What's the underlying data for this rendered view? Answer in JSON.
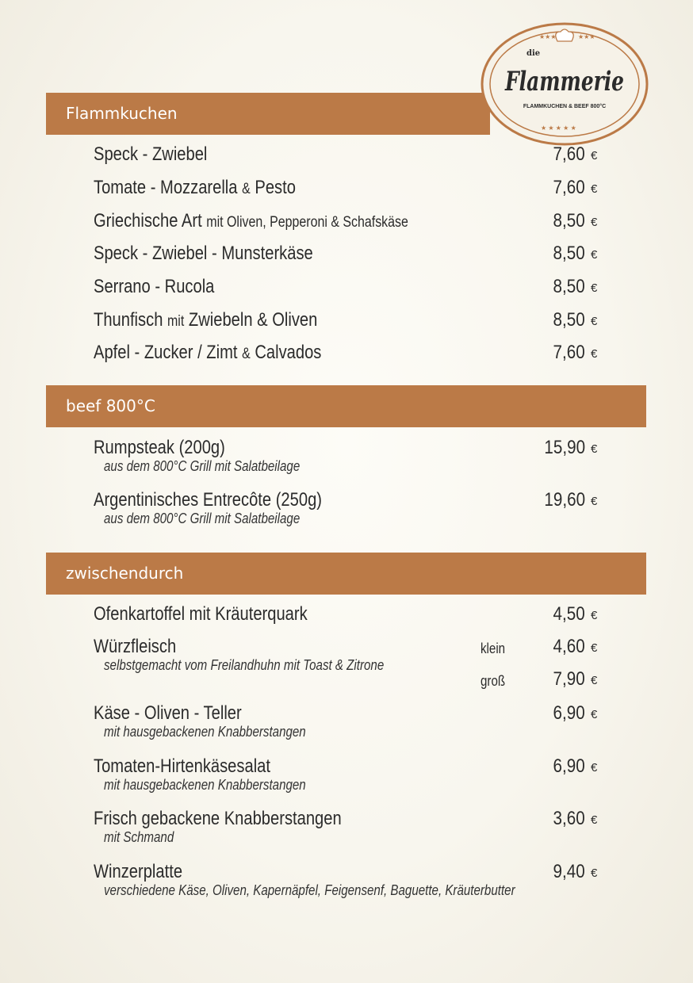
{
  "logo": {
    "small": "die",
    "main": "Flammerie",
    "tagline": "FLAMMKUCHEN & BEEF 800°C"
  },
  "colors": {
    "accent": "#bb7a47",
    "background": "#f8f6ee",
    "text": "#2b2b2b"
  },
  "currency": "€",
  "sections": [
    {
      "title": "Flammkuchen",
      "items": [
        {
          "name": [
            {
              "t": "Speck - Zwiebel"
            }
          ],
          "prices": [
            {
              "price": "7,60"
            }
          ]
        },
        {
          "name": [
            {
              "t": "Tomate - Mozzarella "
            },
            {
              "t": "&",
              "s": true
            },
            {
              "t": " Pesto"
            }
          ],
          "prices": [
            {
              "price": "7,60"
            }
          ]
        },
        {
          "name": [
            {
              "t": "Griechische Art "
            },
            {
              "t": "mit Oliven, Pepperoni & Schafskäse",
              "s": true
            }
          ],
          "prices": [
            {
              "price": "8,50"
            }
          ]
        },
        {
          "name": [
            {
              "t": "Speck - Zwiebel - Munsterkäse"
            }
          ],
          "prices": [
            {
              "price": "8,50"
            }
          ]
        },
        {
          "name": [
            {
              "t": "Serrano - Rucola"
            }
          ],
          "prices": [
            {
              "price": "8,50"
            }
          ]
        },
        {
          "name": [
            {
              "t": "Thunfisch "
            },
            {
              "t": "mit",
              "s": true
            },
            {
              "t": " Zwiebeln & Oliven"
            }
          ],
          "prices": [
            {
              "price": "8,50"
            }
          ]
        },
        {
          "name": [
            {
              "t": "Apfel - Zucker / Zimt "
            },
            {
              "t": "&",
              "s": true
            },
            {
              "t": " Calvados"
            }
          ],
          "prices": [
            {
              "price": "7,60"
            }
          ]
        }
      ]
    },
    {
      "title": "beef 800°C",
      "items": [
        {
          "name": [
            {
              "t": "Rumpsteak (200g)"
            }
          ],
          "desc": "aus dem 800°C Grill mit Salatbeilage",
          "prices": [
            {
              "price": "15,90"
            }
          ]
        },
        {
          "name": [
            {
              "t": "Argentinisches Entrecôte (250g)"
            }
          ],
          "desc": "aus dem 800°C Grill mit Salatbeilage",
          "prices": [
            {
              "price": "19,60"
            }
          ]
        }
      ]
    },
    {
      "title": "zwischendurch",
      "items": [
        {
          "name": [
            {
              "t": "Ofenkartoffel mit Kräuterquark"
            }
          ],
          "prices": [
            {
              "price": "4,50"
            }
          ]
        },
        {
          "name": [
            {
              "t": "Würzfleisch"
            }
          ],
          "desc": "selbstgemacht vom Freilandhuhn mit Toast & Zitrone",
          "prices": [
            {
              "size": "klein",
              "price": "4,60"
            },
            {
              "size": "groß",
              "price": "7,90"
            }
          ]
        },
        {
          "name": [
            {
              "t": "Käse - Oliven - Teller"
            }
          ],
          "desc": "mit hausgebackenen Knabberstangen",
          "prices": [
            {
              "price": "6,90"
            }
          ]
        },
        {
          "name": [
            {
              "t": "Tomaten-Hirtenkäsesalat"
            }
          ],
          "desc": "mit hausgebackenen Knabberstangen",
          "prices": [
            {
              "price": "6,90"
            }
          ]
        },
        {
          "name": [
            {
              "t": "Frisch gebackene Knabberstangen"
            }
          ],
          "desc": "mit Schmand",
          "prices": [
            {
              "price": "3,60"
            }
          ]
        },
        {
          "name": [
            {
              "t": "Winzerplatte"
            }
          ],
          "desc": "verschiedene Käse, Oliven, Kapernäpfel, Feigensenf, Baguette, Kräuterbutter",
          "prices": [
            {
              "price": "9,40"
            }
          ]
        }
      ]
    }
  ]
}
